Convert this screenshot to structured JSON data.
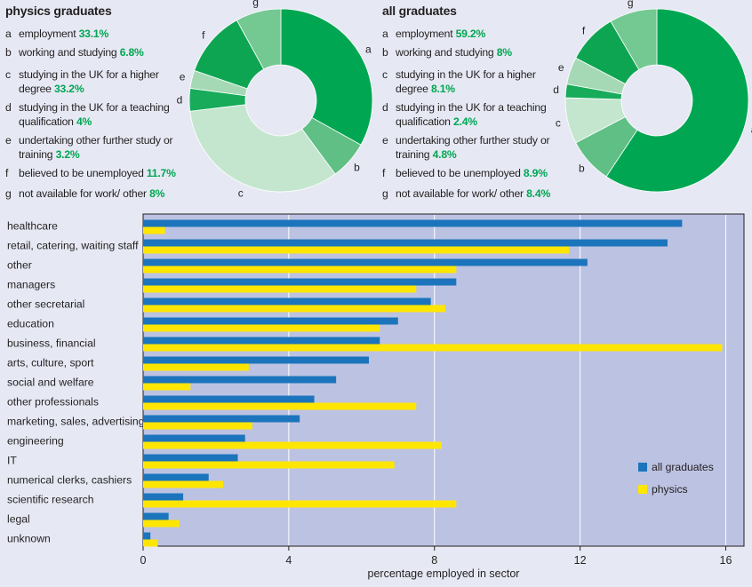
{
  "colors": {
    "background": "#e6e9f4",
    "plot_bg": "#bcc2e2",
    "all_graduates": "#1c75bc",
    "physics": "#ffe600",
    "value_text": "#00a651",
    "donut": {
      "a": "#00a651",
      "b": "#5fbf85",
      "c": "#c4e6ce",
      "d": "#17ab5a",
      "e": "#a5d9b5",
      "f": "#0ea552",
      "g": "#74c992"
    }
  },
  "chart_data": [
    {
      "type": "pie",
      "title": "physics graduates",
      "slices": [
        {
          "key": "a",
          "label": "employment",
          "value": 33.1,
          "display": "33.1%"
        },
        {
          "key": "b",
          "label": "working and studying",
          "value": 6.8,
          "display": "6.8%"
        },
        {
          "key": "c",
          "label": "studying in the UK for a higher degree",
          "value": 33.2,
          "display": "33.2%"
        },
        {
          "key": "d",
          "label": "studying in the UK for a teaching qualification",
          "value": 4,
          "display": "4%"
        },
        {
          "key": "e",
          "label": "undertaking other further study or training",
          "value": 3.2,
          "display": "3.2%"
        },
        {
          "key": "f",
          "label": "believed to be unemployed",
          "value": 11.7,
          "display": "11.7%"
        },
        {
          "key": "g",
          "label": "not available for work/ other",
          "value": 8,
          "display": "8%"
        }
      ]
    },
    {
      "type": "pie",
      "title": "all graduates",
      "slices": [
        {
          "key": "a",
          "label": "employment",
          "value": 59.2,
          "display": "59.2%"
        },
        {
          "key": "b",
          "label": "working and studying",
          "value": 8,
          "display": "8%"
        },
        {
          "key": "c",
          "label": "studying in the UK for a higher degree",
          "value": 8.1,
          "display": "8.1%"
        },
        {
          "key": "d",
          "label": "studying in the UK for a teaching qualification",
          "value": 2.4,
          "display": "2.4%"
        },
        {
          "key": "e",
          "label": "undertaking other further study or training",
          "value": 4.8,
          "display": "4.8%"
        },
        {
          "key": "f",
          "label": "believed to be unemployed",
          "value": 8.9,
          "display": "8.9%"
        },
        {
          "key": "g",
          "label": "not available for work/ other",
          "value": 8.4,
          "display": "8.4%"
        }
      ]
    },
    {
      "type": "bar",
      "orientation": "horizontal",
      "xlabel": "percentage employed in sector",
      "xlim": [
        0,
        16.5
      ],
      "xticks": [
        0,
        4,
        8,
        12,
        16
      ],
      "grid": true,
      "legend": "bottom-right",
      "categories": [
        "healthcare",
        "retail, catering, waiting staff",
        "other",
        "managers",
        "other secretarial",
        "education",
        "business, financial",
        "arts, culture, sport",
        "social and welfare",
        "other professionals",
        "marketing, sales, advertising",
        "engineering",
        "IT",
        "numerical clerks, cashiers",
        "scientific research",
        "legal",
        "unknown"
      ],
      "series": [
        {
          "name": "all graduates",
          "values": [
            14.8,
            14.4,
            12.2,
            8.6,
            7.9,
            7.0,
            6.5,
            6.2,
            5.3,
            4.7,
            4.3,
            2.8,
            2.6,
            1.8,
            1.1,
            0.7,
            0.2
          ]
        },
        {
          "name": "physics",
          "values": [
            0.6,
            11.7,
            8.6,
            7.5,
            8.3,
            6.5,
            15.9,
            2.9,
            1.3,
            7.5,
            3.0,
            8.2,
            6.9,
            2.2,
            8.6,
            1.0,
            0.4
          ]
        }
      ]
    }
  ]
}
